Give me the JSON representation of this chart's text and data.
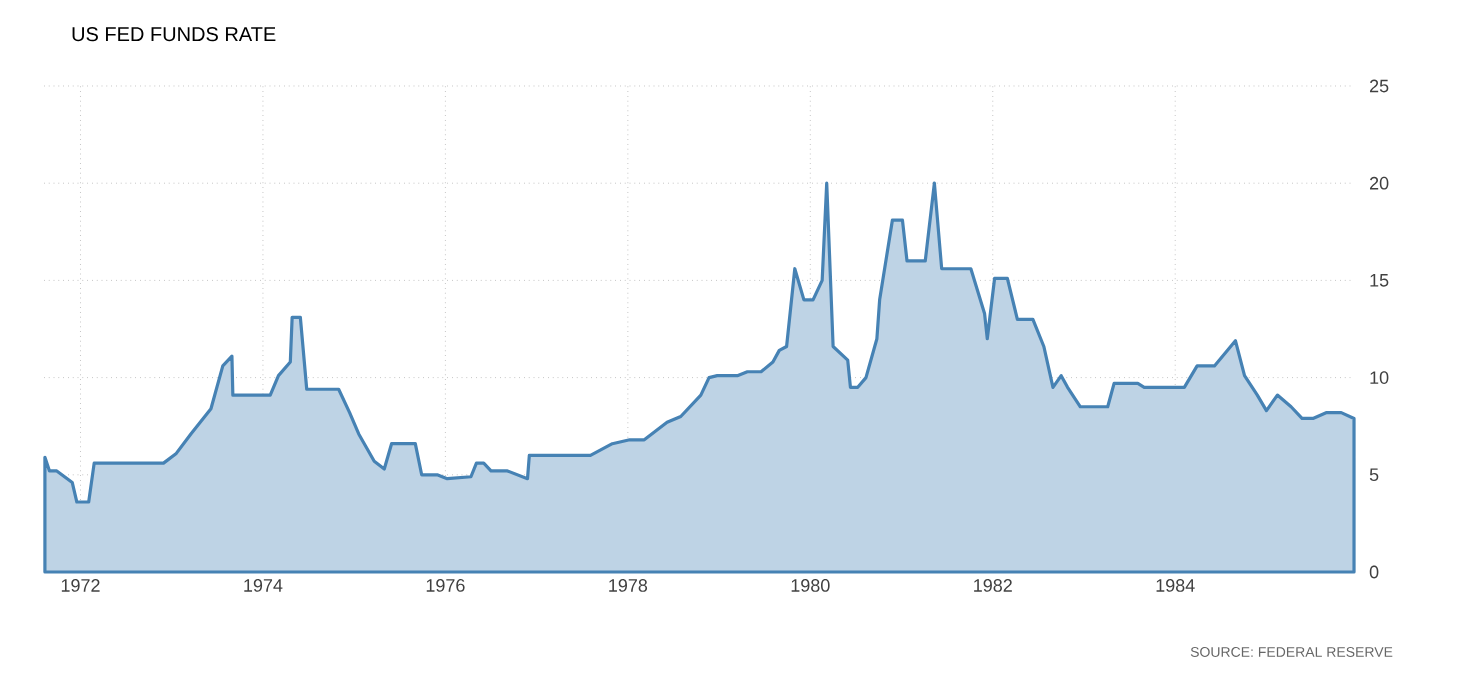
{
  "chart_data": {
    "type": "area",
    "title": "US FED FUNDS RATE",
    "annotations": [
      "SOURCE: FEDERAL RESERVE"
    ],
    "x": [
      1971.61,
      1971.66,
      1971.74,
      1971.91,
      1971.96,
      1972.09,
      1972.15,
      1972.91,
      1973.05,
      1973.21,
      1973.43,
      1973.56,
      1973.66,
      1973.67,
      1974.08,
      1974.17,
      1974.3,
      1974.32,
      1974.41,
      1974.48,
      1974.83,
      1974.95,
      1975.05,
      1975.22,
      1975.33,
      1975.41,
      1975.67,
      1975.74,
      1975.91,
      1976.02,
      1976.28,
      1976.34,
      1976.42,
      1976.5,
      1976.68,
      1976.9,
      1976.92,
      1977.59,
      1977.83,
      1978.02,
      1978.18,
      1978.43,
      1978.58,
      1978.8,
      1978.89,
      1978.98,
      1979.2,
      1979.31,
      1979.46,
      1979.59,
      1979.66,
      1979.74,
      1979.83,
      1979.93,
      1980.03,
      1980.13,
      1980.18,
      1980.25,
      1980.41,
      1980.44,
      1980.52,
      1980.61,
      1980.73,
      1980.76,
      1980.9,
      1981.01,
      1981.06,
      1981.26,
      1981.36,
      1981.44,
      1981.76,
      1981.91,
      1981.94,
      1982.02,
      1982.16,
      1982.27,
      1982.44,
      1982.56,
      1982.66,
      1982.75,
      1982.82,
      1982.96,
      1983.26,
      1983.33,
      1983.59,
      1983.66,
      1984.1,
      1984.24,
      1984.43,
      1984.66,
      1984.76,
      1984.9,
      1985.0,
      1985.12,
      1985.27,
      1985.39,
      1985.51,
      1985.66,
      1985.82,
      1985.96
    ],
    "series": [
      {
        "color": "#4682b4",
        "values": [
          5.9,
          5.2,
          5.2,
          4.6,
          3.6,
          3.6,
          5.6,
          5.6,
          6.1,
          7.1,
          8.4,
          10.6,
          11.1,
          9.1,
          9.1,
          10.1,
          10.8,
          13.1,
          13.1,
          9.4,
          9.4,
          8.2,
          7.1,
          5.7,
          5.3,
          6.6,
          6.6,
          5.0,
          5.0,
          4.8,
          4.9,
          5.6,
          5.6,
          5.2,
          5.2,
          4.8,
          6.0,
          6.0,
          6.6,
          6.8,
          6.8,
          7.7,
          8.0,
          9.1,
          10.0,
          10.1,
          10.1,
          10.3,
          10.3,
          10.8,
          11.4,
          11.6,
          15.6,
          14.0,
          14.0,
          15.0,
          20.0,
          11.6,
          10.9,
          9.5,
          9.5,
          10.0,
          12.0,
          14.0,
          18.1,
          18.1,
          16.0,
          16.0,
          20.0,
          15.6,
          15.6,
          13.3,
          12.0,
          15.1,
          15.1,
          13.0,
          13.0,
          11.6,
          9.5,
          10.1,
          9.5,
          8.5,
          8.5,
          9.7,
          9.7,
          9.5,
          9.5,
          10.6,
          10.6,
          11.9,
          10.1,
          9.1,
          8.3,
          9.1,
          8.5,
          7.9,
          7.9,
          8.2,
          8.2,
          7.9
        ]
      }
    ],
    "xlim": [
      1971.6,
      1985.96
    ],
    "ylim": [
      0,
      25
    ],
    "xticks": [
      1972,
      1974,
      1976,
      1978,
      1980,
      1982,
      1984
    ],
    "yticks": [
      0,
      5,
      10,
      15,
      20,
      25
    ],
    "grid": true,
    "line_style": "solid",
    "marker": "none"
  }
}
